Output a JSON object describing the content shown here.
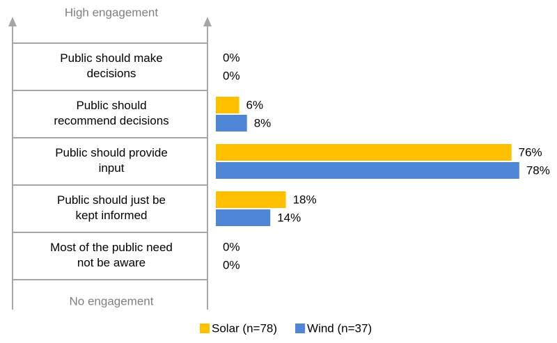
{
  "chart_data": {
    "type": "bar",
    "orientation": "horizontal",
    "top_label": "High engagement",
    "bottom_label": "No engagement",
    "categories": [
      [
        "Public should make",
        "decisions"
      ],
      [
        "Public should",
        "recommend decisions"
      ],
      [
        "Public should provide",
        "input"
      ],
      [
        "Public should just be",
        "kept informed"
      ],
      [
        "Most of the public need",
        "not be aware"
      ]
    ],
    "series": [
      {
        "name": "Solar (n=78)",
        "color": "#ffc000",
        "values": [
          0,
          6,
          76,
          18,
          0
        ],
        "value_labels": [
          "0%",
          "6%",
          "76%",
          "18%",
          "0%"
        ]
      },
      {
        "name": "Wind (n=37)",
        "color": "#4f87d6",
        "values": [
          0,
          8,
          78,
          14,
          0
        ],
        "value_labels": [
          "0%",
          "8%",
          "78%",
          "14%",
          "0%"
        ]
      }
    ],
    "xlim": [
      0,
      80
    ],
    "legend": "bottom"
  }
}
